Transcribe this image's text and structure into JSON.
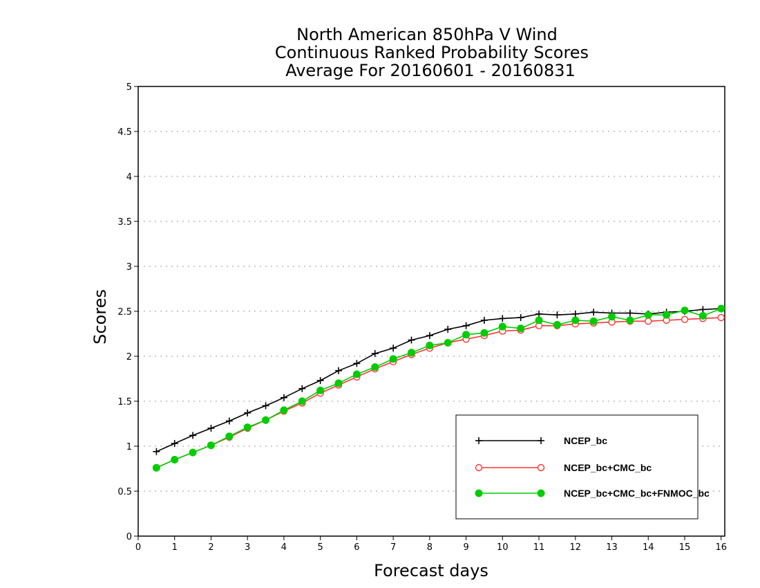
{
  "chart_data": {
    "type": "line",
    "title_lines": [
      "North American 850hPa V Wind",
      "Continuous Ranked Probability Scores",
      "Average For 20160601 - 20160831"
    ],
    "xlabel": "Forecast days",
    "ylabel": "Scores",
    "xlim": [
      0,
      16.1
    ],
    "ylim": [
      0,
      5
    ],
    "x_ticks": [
      0,
      1,
      2,
      3,
      4,
      5,
      6,
      7,
      8,
      9,
      10,
      11,
      12,
      13,
      14,
      15,
      16
    ],
    "y_ticks": [
      0,
      0.5,
      1,
      1.5,
      2,
      2.5,
      3,
      3.5,
      4,
      4.5,
      5
    ],
    "y_tick_labels": [
      "0",
      "0.5",
      "1",
      "1.5",
      "2",
      "2.5",
      "3",
      "3.5",
      "4",
      "4.5",
      "5"
    ],
    "grid": "horizontal dotted",
    "legend_position": "bottom-right",
    "x": [
      0.5,
      1.0,
      1.5,
      2.0,
      2.5,
      3.0,
      3.5,
      4.0,
      4.5,
      5.0,
      5.5,
      6.0,
      6.5,
      7.0,
      7.5,
      8.0,
      8.5,
      9.0,
      9.5,
      10.0,
      10.5,
      11.0,
      11.5,
      12.0,
      12.5,
      13.0,
      13.5,
      14.0,
      14.5,
      15.0,
      15.5,
      16.0
    ],
    "series": [
      {
        "name": "NCEP_bc",
        "color": "#000000",
        "marker": "plus",
        "values": [
          0.94,
          1.03,
          1.12,
          1.2,
          1.28,
          1.37,
          1.45,
          1.54,
          1.64,
          1.73,
          1.84,
          1.92,
          2.03,
          2.09,
          2.18,
          2.23,
          2.3,
          2.34,
          2.4,
          2.42,
          2.43,
          2.47,
          2.46,
          2.47,
          2.49,
          2.48,
          2.48,
          2.47,
          2.49,
          2.5,
          2.52,
          2.53
        ]
      },
      {
        "name": "NCEP_bc+CMC_bc",
        "color": "#ff3333",
        "marker": "open-circle",
        "values": [
          0.76,
          0.85,
          0.93,
          1.01,
          1.1,
          1.2,
          1.29,
          1.39,
          1.48,
          1.59,
          1.68,
          1.77,
          1.86,
          1.94,
          2.02,
          2.09,
          2.15,
          2.19,
          2.23,
          2.28,
          2.29,
          2.34,
          2.34,
          2.36,
          2.37,
          2.38,
          2.39,
          2.39,
          2.4,
          2.41,
          2.42,
          2.43
        ]
      },
      {
        "name": "NCEP_bc+CMC_bc+FNMOC_bc",
        "color": "#00cc00",
        "marker": "filled-circle",
        "values": [
          0.76,
          0.85,
          0.93,
          1.01,
          1.11,
          1.21,
          1.29,
          1.4,
          1.5,
          1.62,
          1.7,
          1.8,
          1.88,
          1.97,
          2.04,
          2.12,
          2.15,
          2.24,
          2.26,
          2.33,
          2.31,
          2.4,
          2.35,
          2.4,
          2.39,
          2.44,
          2.4,
          2.46,
          2.46,
          2.51,
          2.45,
          2.53
        ]
      }
    ]
  }
}
